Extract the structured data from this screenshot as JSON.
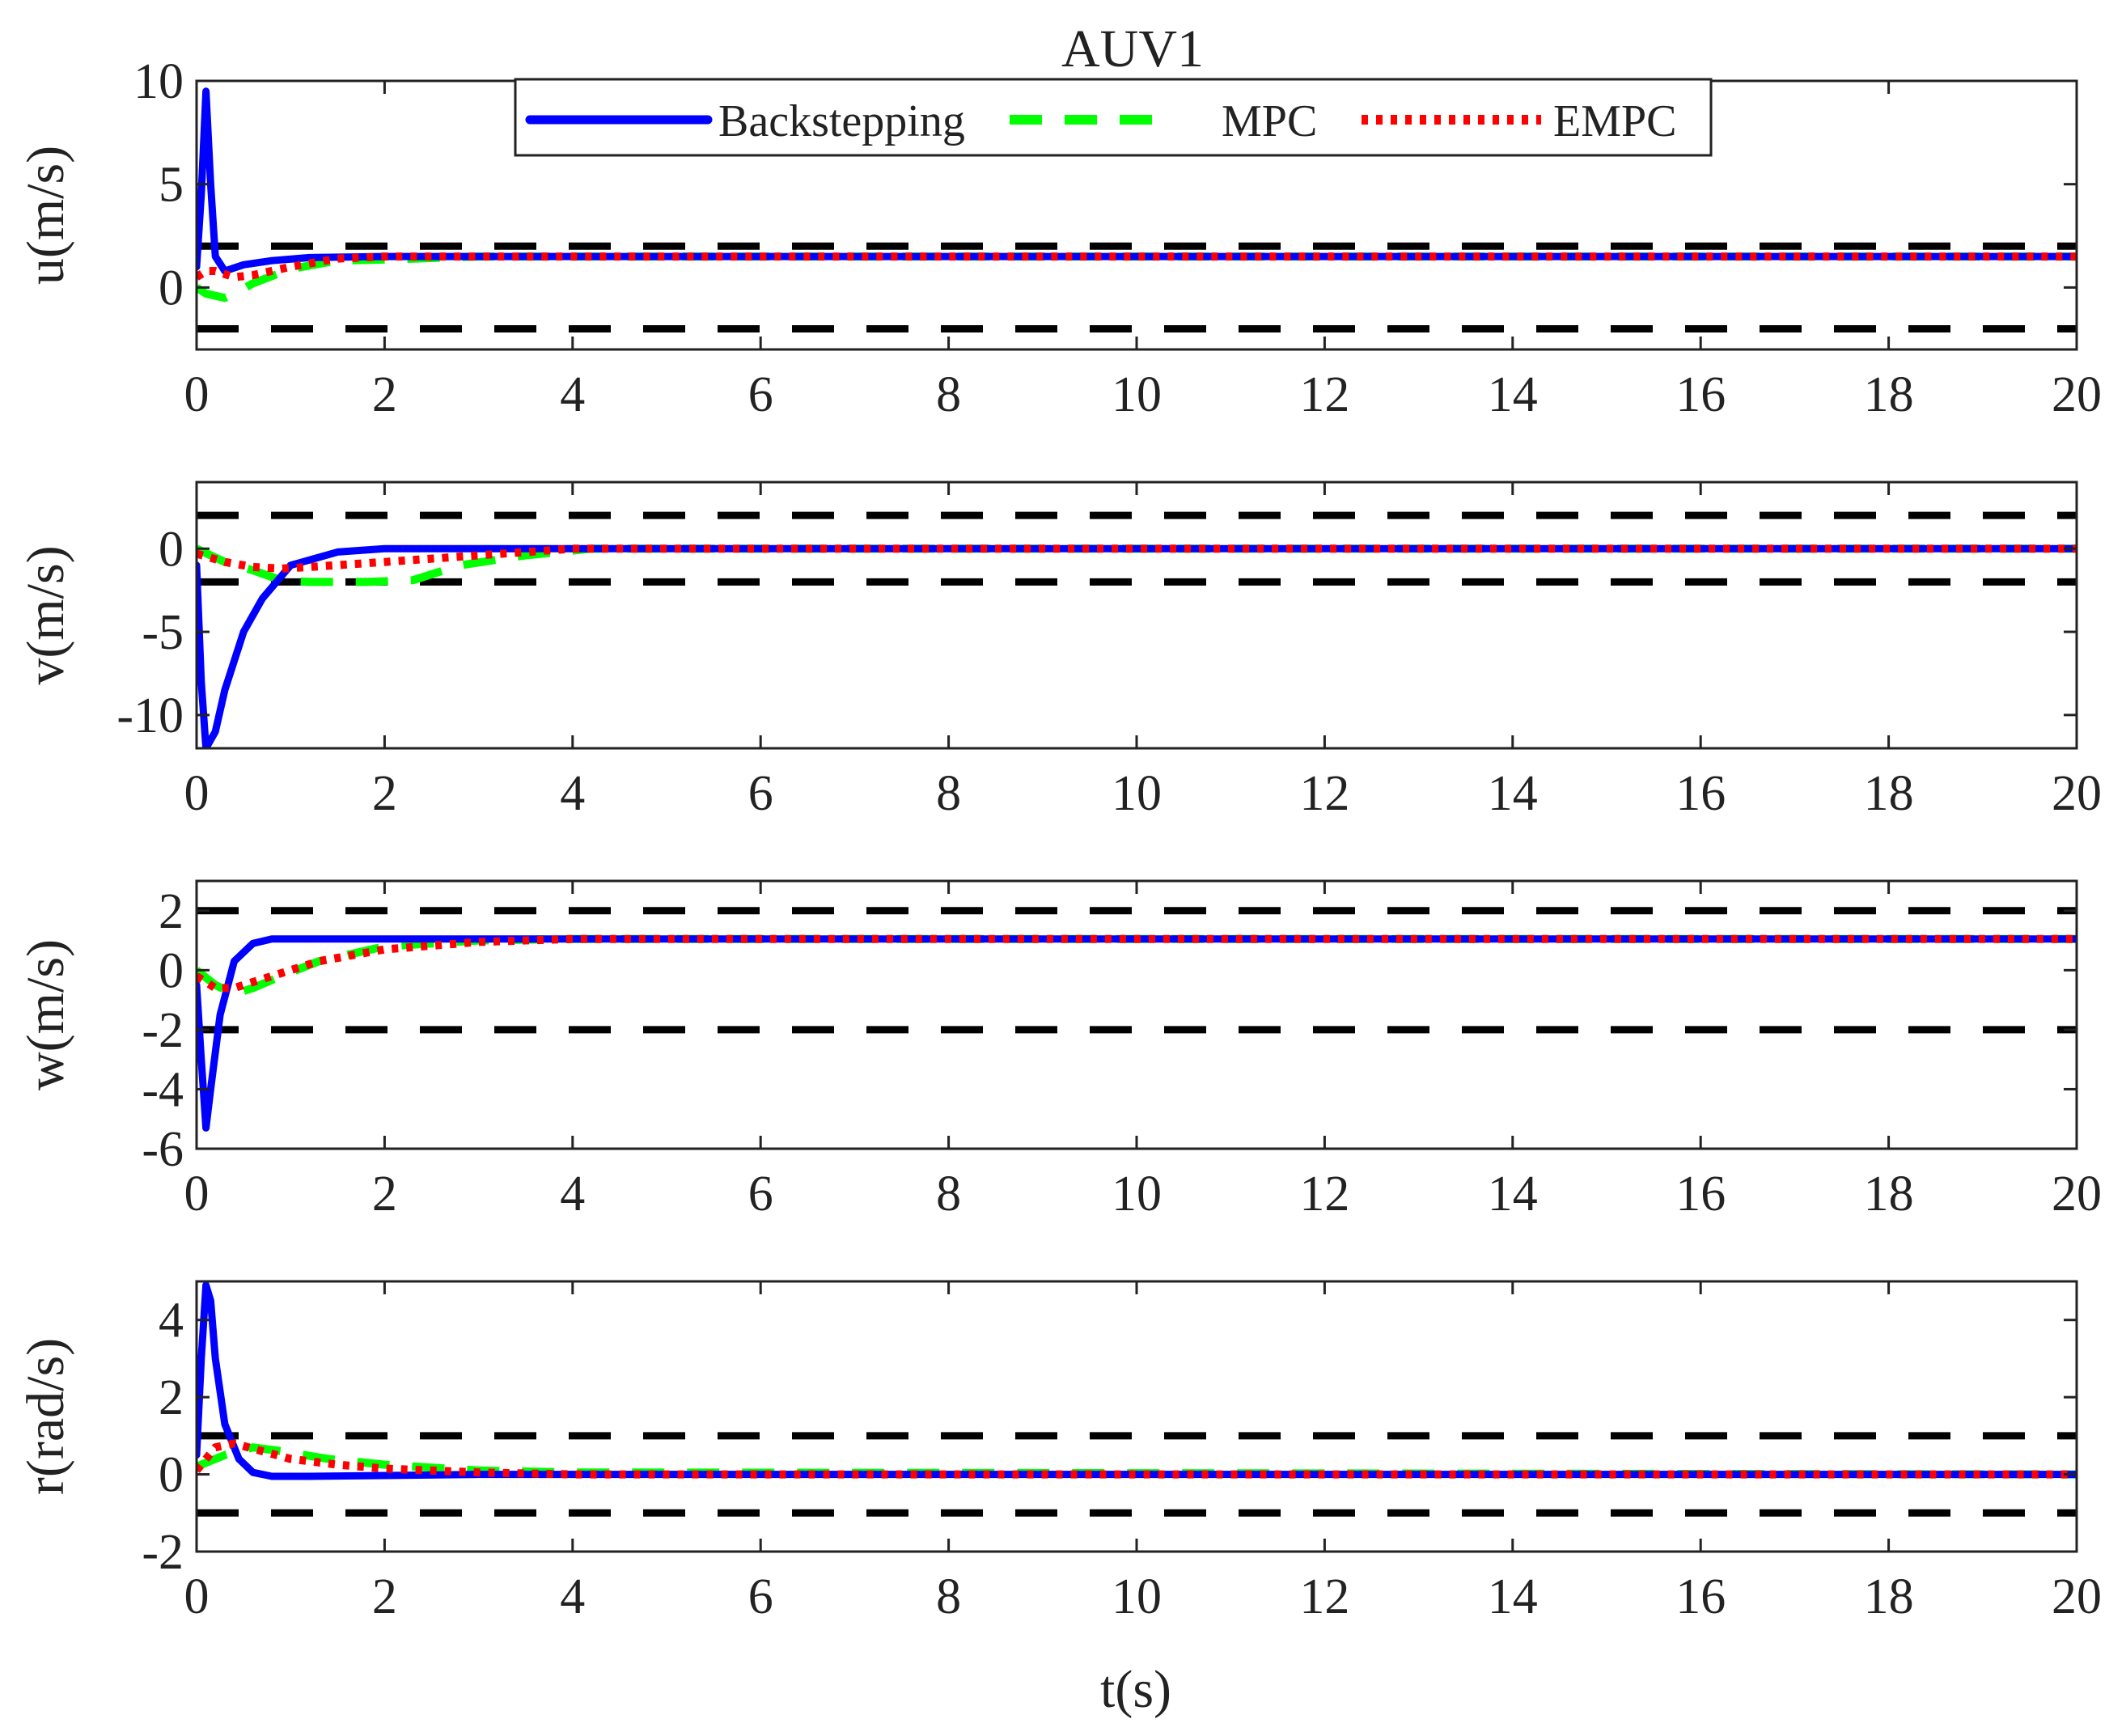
{
  "title": "AUV1",
  "xlabel": "t(s)",
  "legend": {
    "placement": "top-center of first subplot",
    "entries": [
      {
        "label": "Backstepping",
        "color": "#0000FF",
        "style": "solid"
      },
      {
        "label": "MPC",
        "color": "#00FF00",
        "style": "dashed"
      },
      {
        "label": "EMPC",
        "color": "#FF0000",
        "style": "dotted"
      }
    ]
  },
  "colors": {
    "backstepping": "#0000FF",
    "mpc": "#00FF00",
    "empc": "#FF0000",
    "bound": "#000000"
  },
  "chart_data": [
    {
      "type": "line",
      "ylabel": "u(m/s)",
      "xlim": [
        0,
        20
      ],
      "ylim": [
        -3,
        10
      ],
      "xticks": [
        0,
        2,
        4,
        6,
        8,
        10,
        12,
        14,
        16,
        18,
        20
      ],
      "yticks": [
        0,
        5,
        10
      ],
      "bounds": [
        2,
        -2
      ],
      "series": [
        {
          "name": "Backstepping",
          "x": [
            0,
            0.05,
            0.1,
            0.15,
            0.2,
            0.3,
            0.5,
            0.8,
            1.2,
            2,
            4,
            20
          ],
          "y": [
            1.0,
            4.5,
            9.5,
            5.0,
            1.5,
            0.8,
            1.1,
            1.3,
            1.45,
            1.5,
            1.5,
            1.5
          ]
        },
        {
          "name": "MPC",
          "x": [
            0,
            0.1,
            0.2,
            0.3,
            0.4,
            0.6,
            1.0,
            1.5,
            2.0,
            3.0,
            20
          ],
          "y": [
            0.0,
            -0.3,
            -0.4,
            -0.5,
            -0.3,
            0.2,
            0.9,
            1.3,
            1.35,
            1.5,
            1.5
          ]
        },
        {
          "name": "EMPC",
          "x": [
            0,
            0.1,
            0.2,
            0.4,
            0.6,
            1.0,
            1.5,
            2.0,
            20
          ],
          "y": [
            0.5,
            0.8,
            0.8,
            0.5,
            0.6,
            1.0,
            1.4,
            1.5,
            1.5
          ]
        }
      ]
    },
    {
      "type": "line",
      "ylabel": "v(m/s)",
      "xlim": [
        0,
        20
      ],
      "ylim": [
        -12,
        4
      ],
      "xticks": [
        0,
        2,
        4,
        6,
        8,
        10,
        12,
        14,
        16,
        18,
        20
      ],
      "yticks": [
        0,
        -5,
        -10
      ],
      "bounds": [
        2,
        -2
      ],
      "series": [
        {
          "name": "Backstepping",
          "x": [
            0,
            0.05,
            0.1,
            0.2,
            0.3,
            0.5,
            0.7,
            1.0,
            1.5,
            2.0,
            3.0,
            4.0,
            20
          ],
          "y": [
            -1,
            -8,
            -12,
            -11,
            -8.5,
            -5,
            -3,
            -1,
            -0.2,
            0.0,
            0.0,
            0.0,
            0.0
          ]
        },
        {
          "name": "MPC",
          "x": [
            0,
            0.3,
            0.6,
            0.9,
            1.2,
            1.8,
            2.3,
            2.8,
            3.5,
            4.2,
            20
          ],
          "y": [
            0,
            -0.8,
            -1.3,
            -1.9,
            -2.0,
            -2.0,
            -1.9,
            -1.0,
            -0.4,
            0.0,
            0.0
          ]
        },
        {
          "name": "EMPC",
          "x": [
            0,
            0.3,
            0.6,
            0.9,
            1.2,
            2.0,
            3.0,
            4.0,
            20
          ],
          "y": [
            -0.3,
            -0.8,
            -1.1,
            -1.2,
            -1.1,
            -0.8,
            -0.4,
            0.0,
            0.0
          ]
        }
      ]
    },
    {
      "type": "line",
      "ylabel": "w(m/s)",
      "xlim": [
        0,
        20
      ],
      "ylim": [
        -6,
        3
      ],
      "xticks": [
        0,
        2,
        4,
        6,
        8,
        10,
        12,
        14,
        16,
        18,
        20
      ],
      "yticks": [
        2,
        0,
        -2,
        -4,
        -6
      ],
      "bounds": [
        2,
        -2
      ],
      "series": [
        {
          "name": "Backstepping",
          "x": [
            0,
            0.05,
            0.1,
            0.15,
            0.25,
            0.4,
            0.6,
            0.8,
            1.2,
            2.0,
            3.0,
            20
          ],
          "y": [
            -0.5,
            -3.0,
            -5.3,
            -4.0,
            -1.5,
            0.3,
            0.9,
            1.05,
            1.05,
            1.05,
            1.05,
            1.05
          ]
        },
        {
          "name": "MPC",
          "x": [
            0,
            0.2,
            0.4,
            0.6,
            0.9,
            1.3,
            2.0,
            3.0,
            4.0,
            20
          ],
          "y": [
            0.0,
            -0.5,
            -0.8,
            -0.6,
            -0.2,
            0.3,
            0.8,
            1.0,
            1.05,
            1.05
          ]
        },
        {
          "name": "EMPC",
          "x": [
            0,
            0.2,
            0.4,
            0.6,
            0.9,
            1.3,
            2.0,
            3.0,
            4.0,
            20
          ],
          "y": [
            -0.2,
            -0.6,
            -0.6,
            -0.4,
            -0.1,
            0.3,
            0.7,
            0.95,
            1.05,
            1.05
          ]
        }
      ]
    },
    {
      "type": "line",
      "ylabel": "r(rad/s)",
      "xlim": [
        0,
        20
      ],
      "ylim": [
        -2,
        5
      ],
      "xticks": [
        0,
        2,
        4,
        6,
        8,
        10,
        12,
        14,
        16,
        18,
        20
      ],
      "yticks": [
        4,
        2,
        0,
        -2
      ],
      "bounds": [
        1,
        -1
      ],
      "series": [
        {
          "name": "Backstepping",
          "x": [
            0,
            0.05,
            0.1,
            0.15,
            0.2,
            0.3,
            0.45,
            0.6,
            0.8,
            1.2,
            2.0,
            3.0,
            20
          ],
          "y": [
            0.5,
            3.0,
            4.9,
            4.5,
            3.0,
            1.3,
            0.4,
            0.05,
            -0.05,
            -0.05,
            -0.03,
            0.0,
            0.0
          ]
        },
        {
          "name": "MPC",
          "x": [
            0,
            0.3,
            0.6,
            0.9,
            1.4,
            2.0,
            3.0,
            4.0,
            20
          ],
          "y": [
            0.2,
            0.5,
            0.7,
            0.6,
            0.4,
            0.25,
            0.1,
            0.05,
            0.0
          ]
        },
        {
          "name": "EMPC",
          "x": [
            0,
            0.2,
            0.4,
            0.7,
            1.0,
            1.5,
            2.0,
            3.0,
            4.0,
            20
          ],
          "y": [
            0.1,
            0.7,
            0.8,
            0.6,
            0.4,
            0.25,
            0.15,
            0.05,
            0.0,
            0.0
          ]
        }
      ]
    }
  ]
}
